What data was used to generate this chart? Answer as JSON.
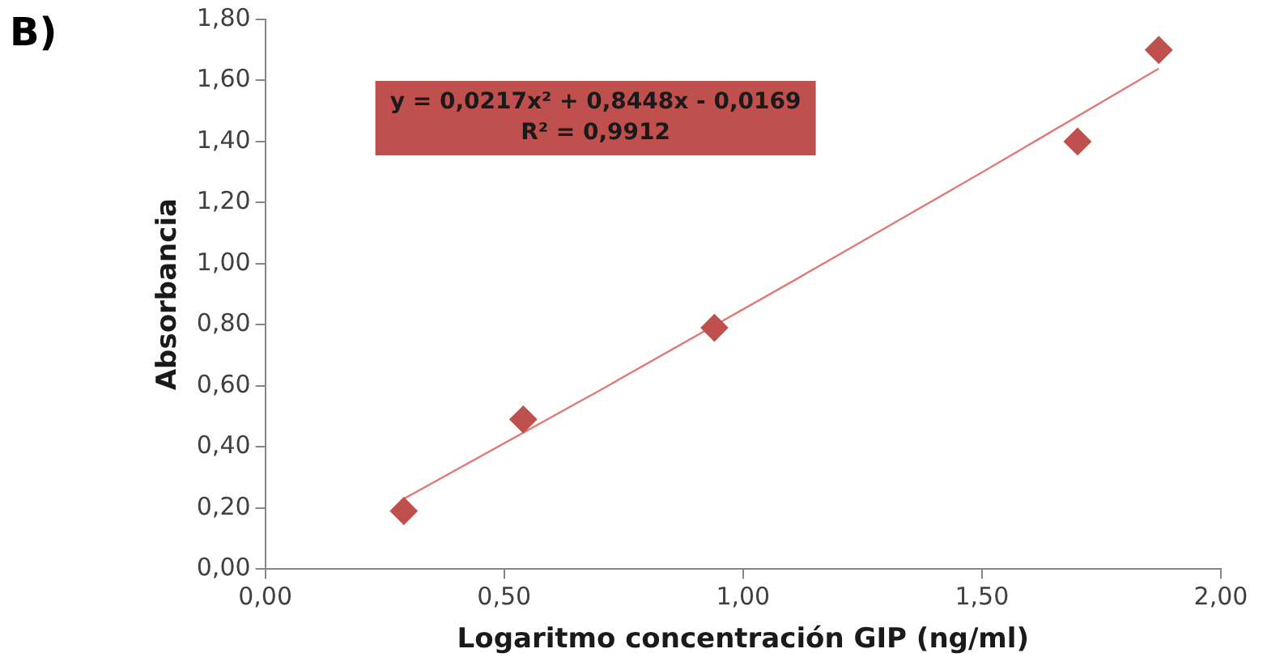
{
  "chart_data": {
    "type": "scatter",
    "xlabel": "Logaritmo concentración GIP (ng/ml)",
    "ylabel": "Absorbancia",
    "annotations": [
      "B)",
      "y = 0,0217x² + 0,8448x - 0,0169\nR² = 0,9912"
    ],
    "x": [
      0.29,
      0.54,
      0.94,
      1.7,
      1.87
    ],
    "series": [
      {
        "color": "#c0504d",
        "marker": "diamond",
        "values": [
          0.19,
          0.49,
          0.79,
          1.4,
          1.7
        ]
      },
      {
        "type": "line",
        "color": "#e07b78",
        "marker": "none",
        "x": [
          0.29,
          0.7,
          1.1,
          1.5,
          1.87
        ],
        "values": [
          0.23,
          0.585,
          0.939,
          1.299,
          1.639
        ]
      }
    ],
    "xlim": [
      0,
      2
    ],
    "xticks": [
      {
        "value": 0,
        "label": "0,00"
      },
      {
        "value": 0.5,
        "label": "0,50"
      },
      {
        "value": 1,
        "label": "1,00"
      },
      {
        "value": 1.5,
        "label": "1,50"
      },
      {
        "value": 2,
        "label": "2,00"
      }
    ],
    "ylim": [
      0,
      1.8
    ],
    "yticks": [
      {
        "value": 0,
        "label": "0,00"
      },
      {
        "value": 0.2,
        "label": "0,20"
      },
      {
        "value": 0.4,
        "label": "0,40"
      },
      {
        "value": 0.6,
        "label": "0,60"
      },
      {
        "value": 0.8,
        "label": "0,80"
      },
      {
        "value": 1,
        "label": "1,00"
      },
      {
        "value": 1.2,
        "label": "1,20"
      },
      {
        "value": 1.4,
        "label": "1,40"
      },
      {
        "value": 1.6,
        "label": "1,60"
      },
      {
        "value": 1.8,
        "label": "1,80"
      }
    ],
    "grid": false,
    "legend": false
  }
}
